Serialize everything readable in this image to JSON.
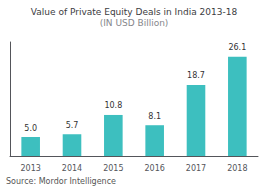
{
  "chart_data": {
    "type": "bar",
    "title": "Value of Private Equity Deals in India 2013-18",
    "subtitle": "(IN USD Billion)",
    "categories": [
      "2013",
      "2014",
      "2015",
      "2016",
      "2017",
      "2018"
    ],
    "values": [
      5.0,
      5.7,
      10.8,
      8.1,
      18.7,
      26.1
    ],
    "value_labels": [
      "5.0",
      "5.7",
      "10.8",
      "8.1",
      "18.7",
      "26.1"
    ],
    "color": "#3dbfbf",
    "ylim": [
      0,
      30
    ],
    "grid": false,
    "data_labels": true,
    "tick_labels": "x",
    "annotation": "Source: Mordor Intelligence"
  }
}
